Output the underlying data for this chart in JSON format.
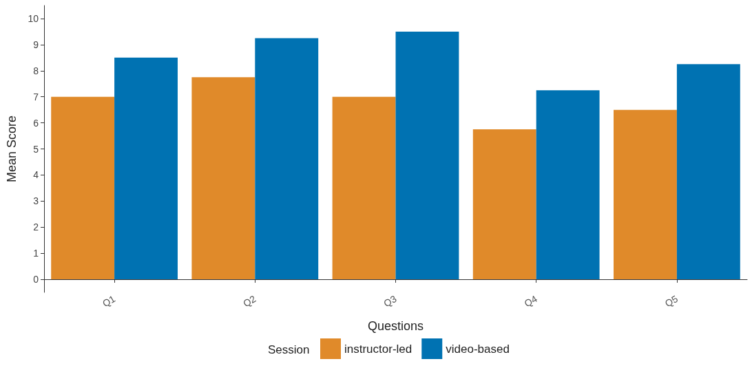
{
  "chart_data": {
    "type": "bar",
    "xlabel": "Questions",
    "ylabel": "Mean Score",
    "legend_title": "Session",
    "categories": [
      "Q1",
      "Q2",
      "Q3",
      "Q4",
      "Q5"
    ],
    "series": [
      {
        "name": "instructor-led",
        "color": "#e08a2a",
        "values": [
          7,
          7.75,
          7,
          5.75,
          6.5
        ]
      },
      {
        "name": "video-based",
        "color": "#0072b2",
        "values": [
          8.5,
          9.25,
          9.5,
          7.25,
          8.25
        ]
      }
    ],
    "ylim": [
      -0.5,
      10.5
    ],
    "yticks": [
      0,
      1,
      2,
      3,
      4,
      5,
      6,
      7,
      8,
      9,
      10
    ],
    "grid": false,
    "legend": "bottom"
  }
}
